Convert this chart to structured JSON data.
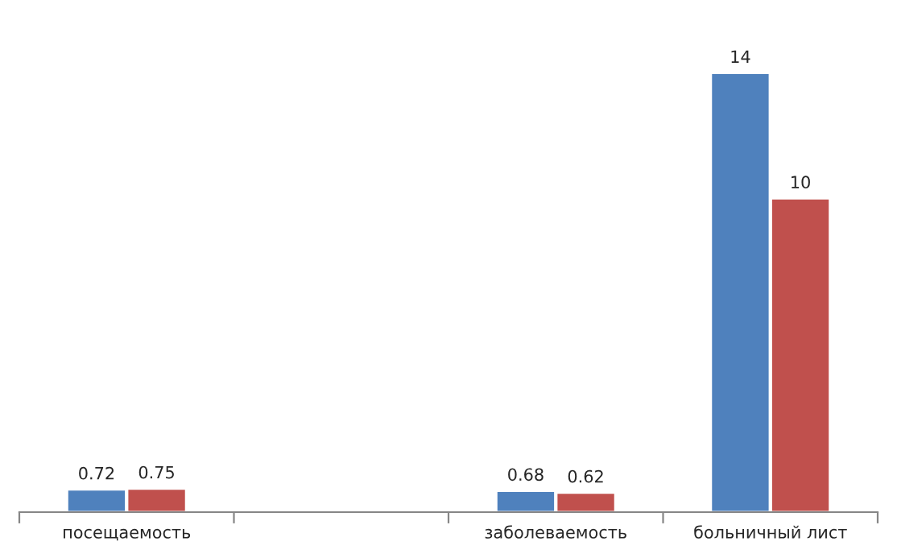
{
  "chart_data": {
    "type": "bar",
    "categories": [
      "посещаемость",
      null,
      "заболеваемость",
      "больничный лист"
    ],
    "series": [
      {
        "color": "#4f81bd",
        "values": [
          0.72,
          null,
          0.68,
          14
        ]
      },
      {
        "color": "#c0504d",
        "values": [
          0.75,
          null,
          0.62,
          10
        ]
      }
    ],
    "data_labels": true,
    "grid": false
  }
}
